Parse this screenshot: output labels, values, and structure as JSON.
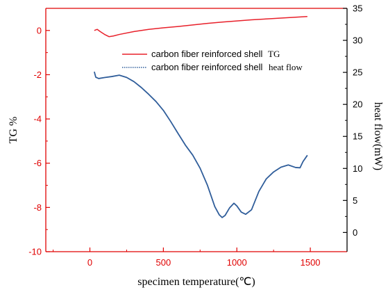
{
  "chart_data": {
    "type": "line",
    "xlabel": "specimen temperature(℃)",
    "ylabel_left": "TG %",
    "ylabel_right": "heat flow(mW)",
    "xlim": [
      -300,
      1750
    ],
    "ylim_left": [
      -10,
      1.0
    ],
    "ylim_right": [
      -3,
      35
    ],
    "x_ticks": [
      0,
      500,
      1000,
      1500
    ],
    "y_ticks_left": [
      0,
      -2,
      -4,
      -6,
      -8,
      -10
    ],
    "y_ticks_right": [
      0,
      5,
      10,
      15,
      20,
      25,
      30,
      35
    ],
    "grid": false,
    "legend_position": "top-center",
    "colors": {
      "tg": "#e8202a",
      "heat_flow": "#2f5d9a",
      "left_axis": "#e00000",
      "right_axis": "#000000"
    },
    "series": [
      {
        "name_main": "carbon fiber reinforced shell",
        "name_suffix": "TG",
        "axis": "left",
        "x": [
          30,
          50,
          70,
          100,
          130,
          160,
          200,
          300,
          400,
          500,
          600,
          700,
          800,
          900,
          1000,
          1100,
          1200,
          1300,
          1400,
          1480
        ],
        "values": [
          0.0,
          0.05,
          -0.05,
          -0.18,
          -0.28,
          -0.25,
          -0.18,
          -0.05,
          0.05,
          0.12,
          0.18,
          0.25,
          0.32,
          0.38,
          0.43,
          0.48,
          0.52,
          0.56,
          0.6,
          0.63
        ]
      },
      {
        "name_main": "carbon  fiber reinforced shell",
        "name_suffix": "heat flow",
        "axis": "right",
        "x": [
          30,
          40,
          60,
          100,
          150,
          200,
          250,
          300,
          350,
          400,
          450,
          500,
          550,
          600,
          650,
          700,
          750,
          800,
          850,
          880,
          900,
          920,
          950,
          980,
          1000,
          1030,
          1060,
          1100,
          1150,
          1200,
          1250,
          1300,
          1350,
          1400,
          1430,
          1450,
          1480
        ],
        "values": [
          25.1,
          24.3,
          24.1,
          24.2,
          24.3,
          24.5,
          24.2,
          23.6,
          22.7,
          21.6,
          20.4,
          19.0,
          17.3,
          15.5,
          13.7,
          12.1,
          10.0,
          7.3,
          4.0,
          2.8,
          2.4,
          2.7,
          3.8,
          4.5,
          4.1,
          3.2,
          2.9,
          3.6,
          6.4,
          8.3,
          9.4,
          10.2,
          10.6,
          10.2,
          10.1,
          11.0,
          12.0
        ]
      }
    ]
  }
}
